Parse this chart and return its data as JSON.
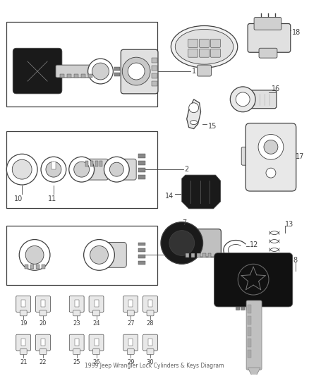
{
  "bg_color": "#ffffff",
  "line_color": "#404040",
  "fig_width": 4.38,
  "fig_height": 5.33,
  "dpi": 100
}
